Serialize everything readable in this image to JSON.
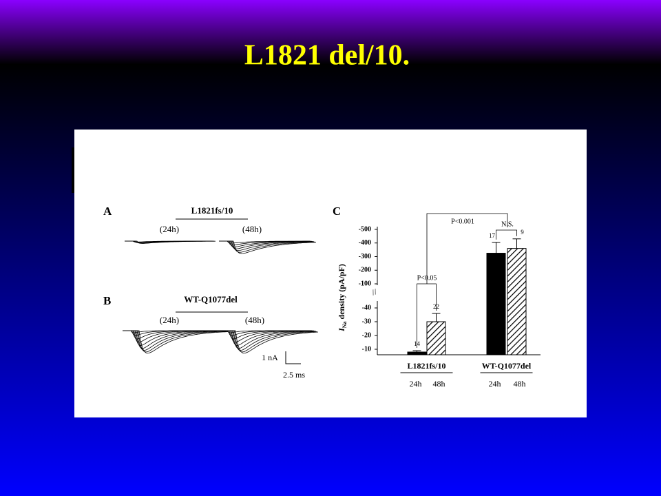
{
  "title": "L1821 del/10.",
  "panel_a": {
    "label": "A",
    "construct": "L1821fs/10",
    "times": [
      "(24h)",
      "(48h)"
    ]
  },
  "panel_b": {
    "label": "B",
    "construct": "WT-Q1077del",
    "times": [
      "(24h)",
      "(48h)"
    ],
    "scale_y": "1 nA",
    "scale_x": "2.5 ms"
  },
  "chart_data": {
    "type": "bar",
    "panel_label": "C",
    "y_label_symbol": "I",
    "y_label_subscript": "Na",
    "y_label": "density (pA/pF)",
    "categories": [
      "L1821fs/10",
      "WT-Q1077del"
    ],
    "series": [
      {
        "name": "24h",
        "color": "#000000",
        "values": [
          -8,
          -325
        ],
        "errors": [
          1,
          80
        ],
        "n": [
          14,
          17
        ]
      },
      {
        "name": "48h",
        "color": "hatched",
        "values": [
          -30,
          -360
        ],
        "errors": [
          6,
          70
        ],
        "n": [
          22,
          9
        ]
      }
    ],
    "segments": [
      {
        "ylim": [
          -6,
          -45
        ],
        "yticks": [
          -10,
          -20,
          -30,
          -40
        ]
      },
      {
        "ylim": [
          -90,
          -520
        ],
        "yticks": [
          -100,
          -200,
          -300,
          -400,
          -500
        ]
      }
    ],
    "break_mark": "//",
    "annotations": [
      "P<0.05",
      "N.S.",
      "P<0.001"
    ]
  }
}
